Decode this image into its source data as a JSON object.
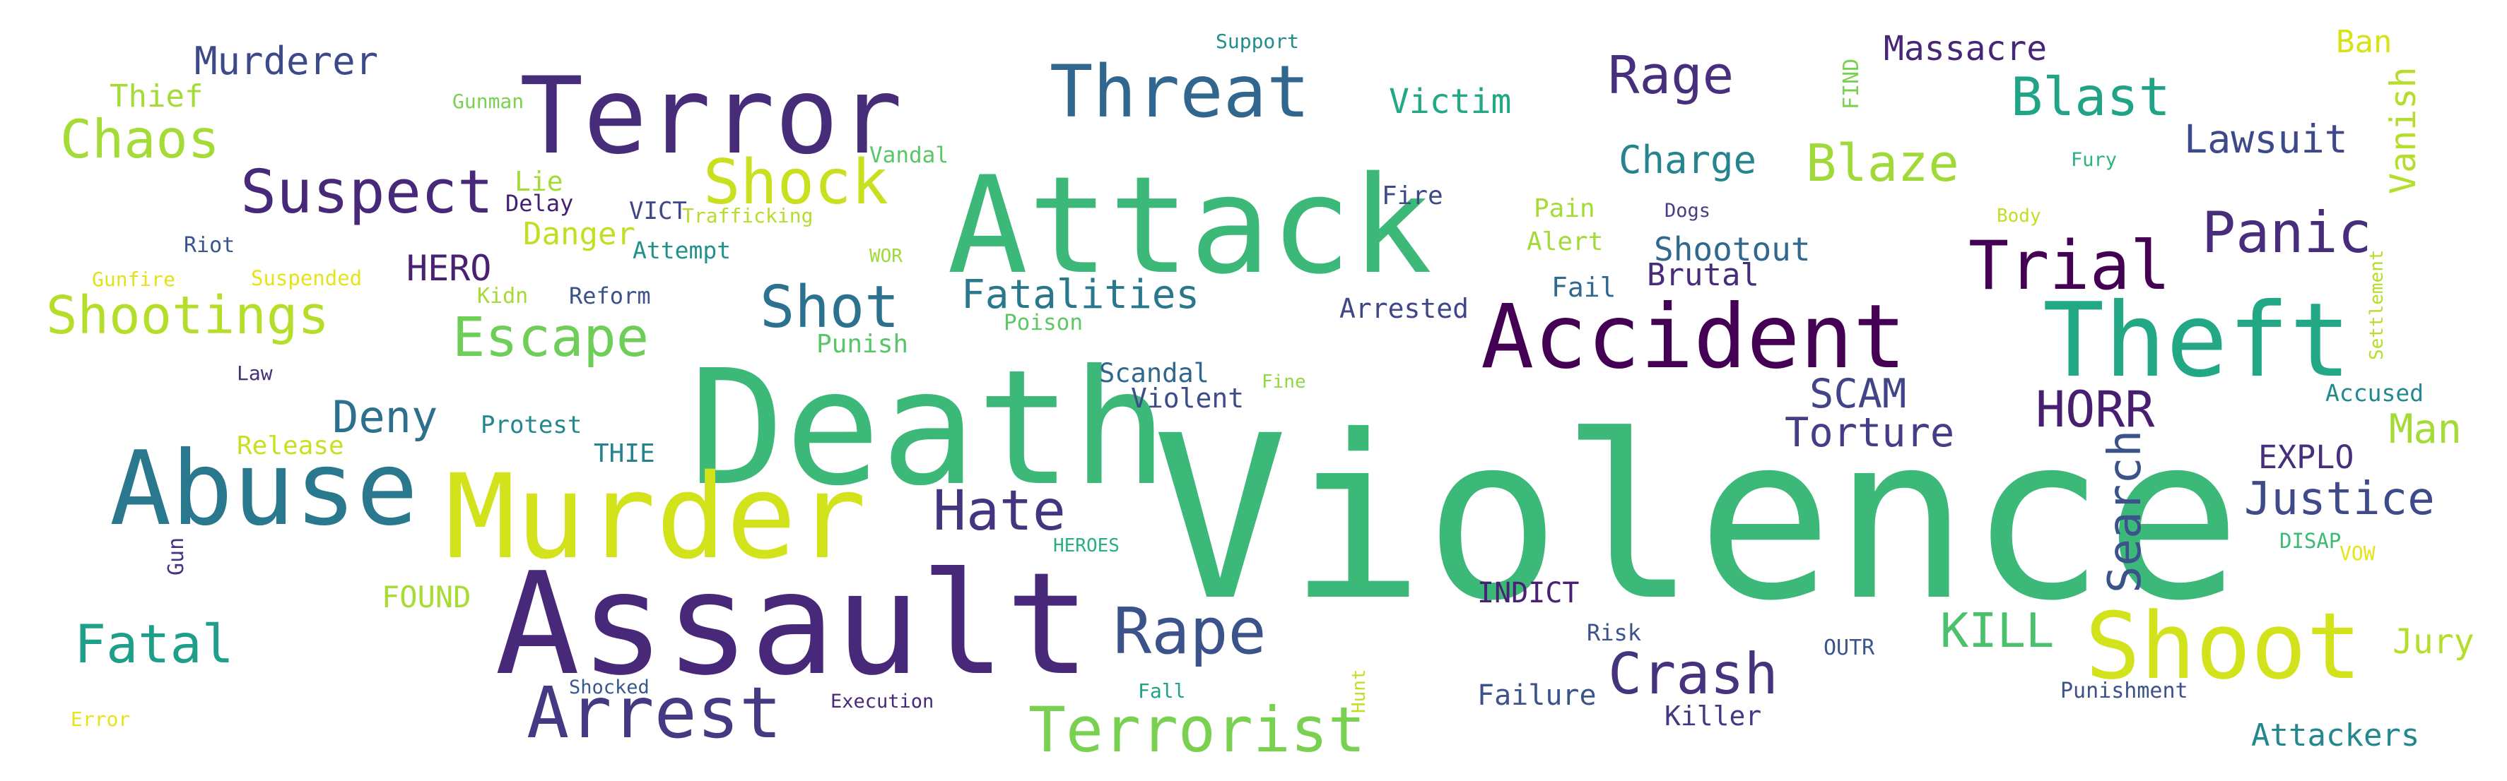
{
  "words": [
    {
      "text": "Violence",
      "color": "#3cb878"
    },
    {
      "text": "Death",
      "color": "#3cb878"
    },
    {
      "text": "Assault",
      "color": "#482878"
    },
    {
      "text": "Attack",
      "color": "#3cb878"
    },
    {
      "text": "Murder",
      "color": "#d2e21b"
    },
    {
      "text": "Terror",
      "color": "#472c7a"
    },
    {
      "text": "Abuse",
      "color": "#2a788e"
    },
    {
      "text": "Theft",
      "color": "#22a884"
    },
    {
      "text": "Accident",
      "color": "#440154"
    },
    {
      "text": "Shoot",
      "color": "#d2e21b"
    },
    {
      "text": "Threat",
      "color": "#31668e"
    },
    {
      "text": "Arrest",
      "color": "#443983"
    },
    {
      "text": "Terrorist",
      "color": "#7ad151"
    },
    {
      "text": "Shock",
      "color": "#c8e020"
    },
    {
      "text": "Rape",
      "color": "#3b528b"
    },
    {
      "text": "Trial",
      "color": "#440154"
    },
    {
      "text": "Crash",
      "color": "#46337e"
    },
    {
      "text": "Hate",
      "color": "#453581"
    },
    {
      "text": "Suspect",
      "color": "#482878"
    },
    {
      "text": "Shot",
      "color": "#2c728e"
    },
    {
      "text": "Escape",
      "color": "#6ece58"
    },
    {
      "text": "Blast",
      "color": "#20a386"
    },
    {
      "text": "Chaos",
      "color": "#a5db36"
    },
    {
      "text": "Rage",
      "color": "#472f7d"
    },
    {
      "text": "Blaze",
      "color": "#a0da39"
    },
    {
      "text": "Panic",
      "color": "#472d7b"
    },
    {
      "text": "Fatal",
      "color": "#1f9e89"
    },
    {
      "text": "Shootings",
      "color": "#b5de2b"
    },
    {
      "text": "Justice",
      "color": "#3e4a89"
    },
    {
      "text": "Search",
      "color": "#3b528b"
    },
    {
      "text": "Deny",
      "color": "#2d708e"
    },
    {
      "text": "Fatalities",
      "color": "#2a788e"
    },
    {
      "text": "Torture",
      "color": "#433e85"
    },
    {
      "text": "HORR",
      "color": "#481f70"
    },
    {
      "text": "SCAM",
      "color": "#414487"
    },
    {
      "text": "KILL",
      "color": "#4ac16d"
    },
    {
      "text": "Murderer",
      "color": "#3e4989"
    },
    {
      "text": "Lawsuit",
      "color": "#3e4989"
    },
    {
      "text": "Man",
      "color": "#a5db36"
    },
    {
      "text": "Charge",
      "color": "#25848e"
    },
    {
      "text": "Massacre",
      "color": "#482677"
    },
    {
      "text": "Vanish",
      "color": "#b5de2b"
    },
    {
      "text": "Victim",
      "color": "#22a884"
    },
    {
      "text": "Thief",
      "color": "#a5db36"
    },
    {
      "text": "Jury",
      "color": "#b5de2b"
    },
    {
      "text": "Shootout",
      "color": "#31688e"
    },
    {
      "text": "HERO",
      "color": "#482173"
    },
    {
      "text": "EXPLO",
      "color": "#46307e"
    },
    {
      "text": "Attackers",
      "color": "#23888e"
    },
    {
      "text": "Danger",
      "color": "#c2df23"
    },
    {
      "text": "Brutal",
      "color": "#472c7a"
    },
    {
      "text": "Ban",
      "color": "#d8e219"
    },
    {
      "text": "Failure",
      "color": "#3b528b"
    },
    {
      "text": "FOUND",
      "color": "#a8db34"
    },
    {
      "text": "Violent",
      "color": "#3d4d8a"
    },
    {
      "text": "Scandal",
      "color": "#31678e"
    },
    {
      "text": "Arrested",
      "color": "#3f4788"
    },
    {
      "text": "Killer",
      "color": "#453781"
    },
    {
      "text": "Alert",
      "color": "#a2da37"
    },
    {
      "text": "Pain",
      "color": "#a5db36"
    },
    {
      "text": "Accused",
      "color": "#23898e"
    },
    {
      "text": "INDICT",
      "color": "#482173"
    },
    {
      "text": "Fail",
      "color": "#31688e"
    },
    {
      "text": "Punish",
      "color": "#56c667"
    },
    {
      "text": "Lie",
      "color": "#a5db36"
    },
    {
      "text": "Victim",
      "color": "#22a884"
    },
    {
      "text": "Fire",
      "color": "#3e4a89"
    },
    {
      "text": "Delay",
      "color": "#482071"
    },
    {
      "text": "VICT",
      "color": "#404688"
    },
    {
      "text": "Attempt",
      "color": "#21918c"
    },
    {
      "text": "Trafficking",
      "color": "#b5de2b"
    },
    {
      "text": "Release",
      "color": "#c8e020"
    },
    {
      "text": "Protest",
      "color": "#23888e"
    },
    {
      "text": "THIE",
      "color": "#26828e"
    },
    {
      "text": "Reform",
      "color": "#3b528b"
    },
    {
      "text": "Kidn",
      "color": "#a5db36"
    },
    {
      "text": "Vandal",
      "color": "#58c765"
    },
    {
      "text": "Poison",
      "color": "#5ec962"
    },
    {
      "text": "Gunman",
      "color": "#7ad151"
    },
    {
      "text": "Riot",
      "color": "#39568c"
    },
    {
      "text": "Gunfire",
      "color": "#e0e318"
    },
    {
      "text": "Suspended",
      "color": "#e5e419"
    },
    {
      "text": "Law",
      "color": "#46307e"
    },
    {
      "text": "Gun",
      "color": "#46327e"
    },
    {
      "text": "Error",
      "color": "#e5e419"
    },
    {
      "text": "Shocked",
      "color": "#38598c"
    },
    {
      "text": "Execution",
      "color": "#482878"
    },
    {
      "text": "Fall",
      "color": "#1fa188"
    },
    {
      "text": "Hunt",
      "color": "#c2df23"
    },
    {
      "text": "Risk",
      "color": "#3b528b"
    },
    {
      "text": "OUTR",
      "color": "#39568c"
    },
    {
      "text": "Punishment",
      "color": "#3b528b"
    },
    {
      "text": "HEROES",
      "color": "#2ab07f"
    },
    {
      "text": "Fine",
      "color": "#8fd744"
    },
    {
      "text": "WOR",
      "color": "#9fda3a"
    },
    {
      "text": "Dogs",
      "color": "#433e85"
    },
    {
      "text": "Support",
      "color": "#228d8d"
    },
    {
      "text": "FIND",
      "color": "#7ad151"
    },
    {
      "text": "Fury",
      "color": "#2db27d"
    },
    {
      "text": "Body",
      "color": "#c2df23"
    },
    {
      "text": "Settlement",
      "color": "#b5de2b"
    },
    {
      "text": "DISAP",
      "color": "#3cbb75"
    },
    {
      "text": "VOW",
      "color": "#e5e419"
    }
  ]
}
